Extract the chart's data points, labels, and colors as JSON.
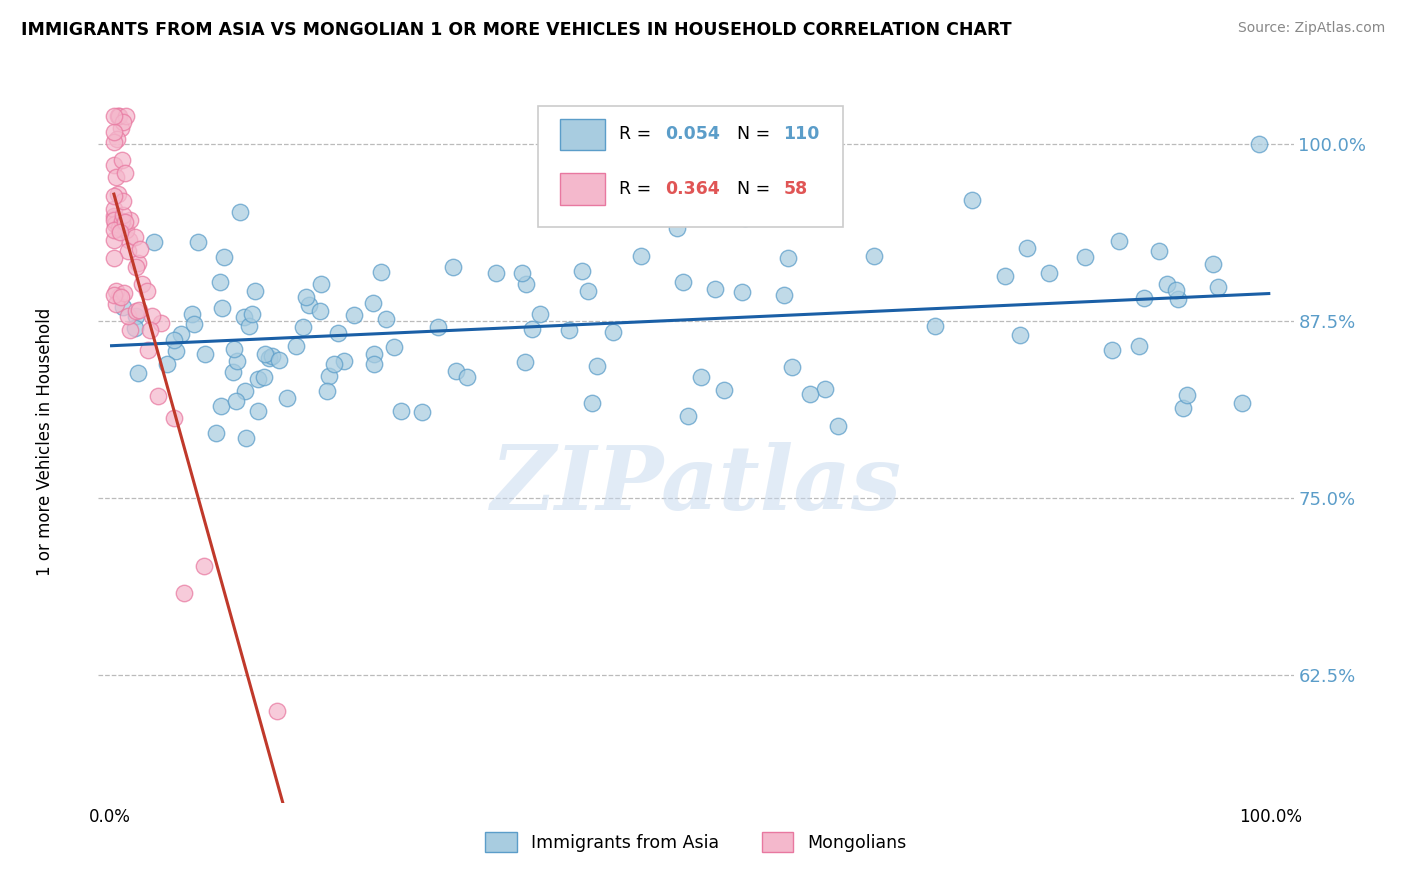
{
  "title": "IMMIGRANTS FROM ASIA VS MONGOLIAN 1 OR MORE VEHICLES IN HOUSEHOLD CORRELATION CHART",
  "source": "Source: ZipAtlas.com",
  "ylabel": "1 or more Vehicles in Household",
  "xlim": [
    -0.01,
    1.02
  ],
  "ylim": [
    0.535,
    1.045
  ],
  "yticks": [
    0.625,
    0.75,
    0.875,
    1.0
  ],
  "ytick_labels": [
    "62.5%",
    "75.0%",
    "87.5%",
    "100.0%"
  ],
  "xtick_positions": [
    0.0,
    1.0
  ],
  "xtick_labels": [
    "0.0%",
    "100.0%"
  ],
  "blue_color": "#a8cce0",
  "pink_color": "#f4b8cc",
  "blue_edge": "#5b9dc9",
  "pink_edge": "#e878a0",
  "blue_line_color": "#1a5fa6",
  "pink_line_color": "#c0392b",
  "ytick_color": "#5b9dc9",
  "R_blue": 0.054,
  "N_blue": 110,
  "R_pink": 0.364,
  "N_pink": 58,
  "watermark": "ZIPatlas",
  "background_color": "#ffffff",
  "legend_blue_label": "Immigrants from Asia",
  "legend_pink_label": "Mongolians"
}
